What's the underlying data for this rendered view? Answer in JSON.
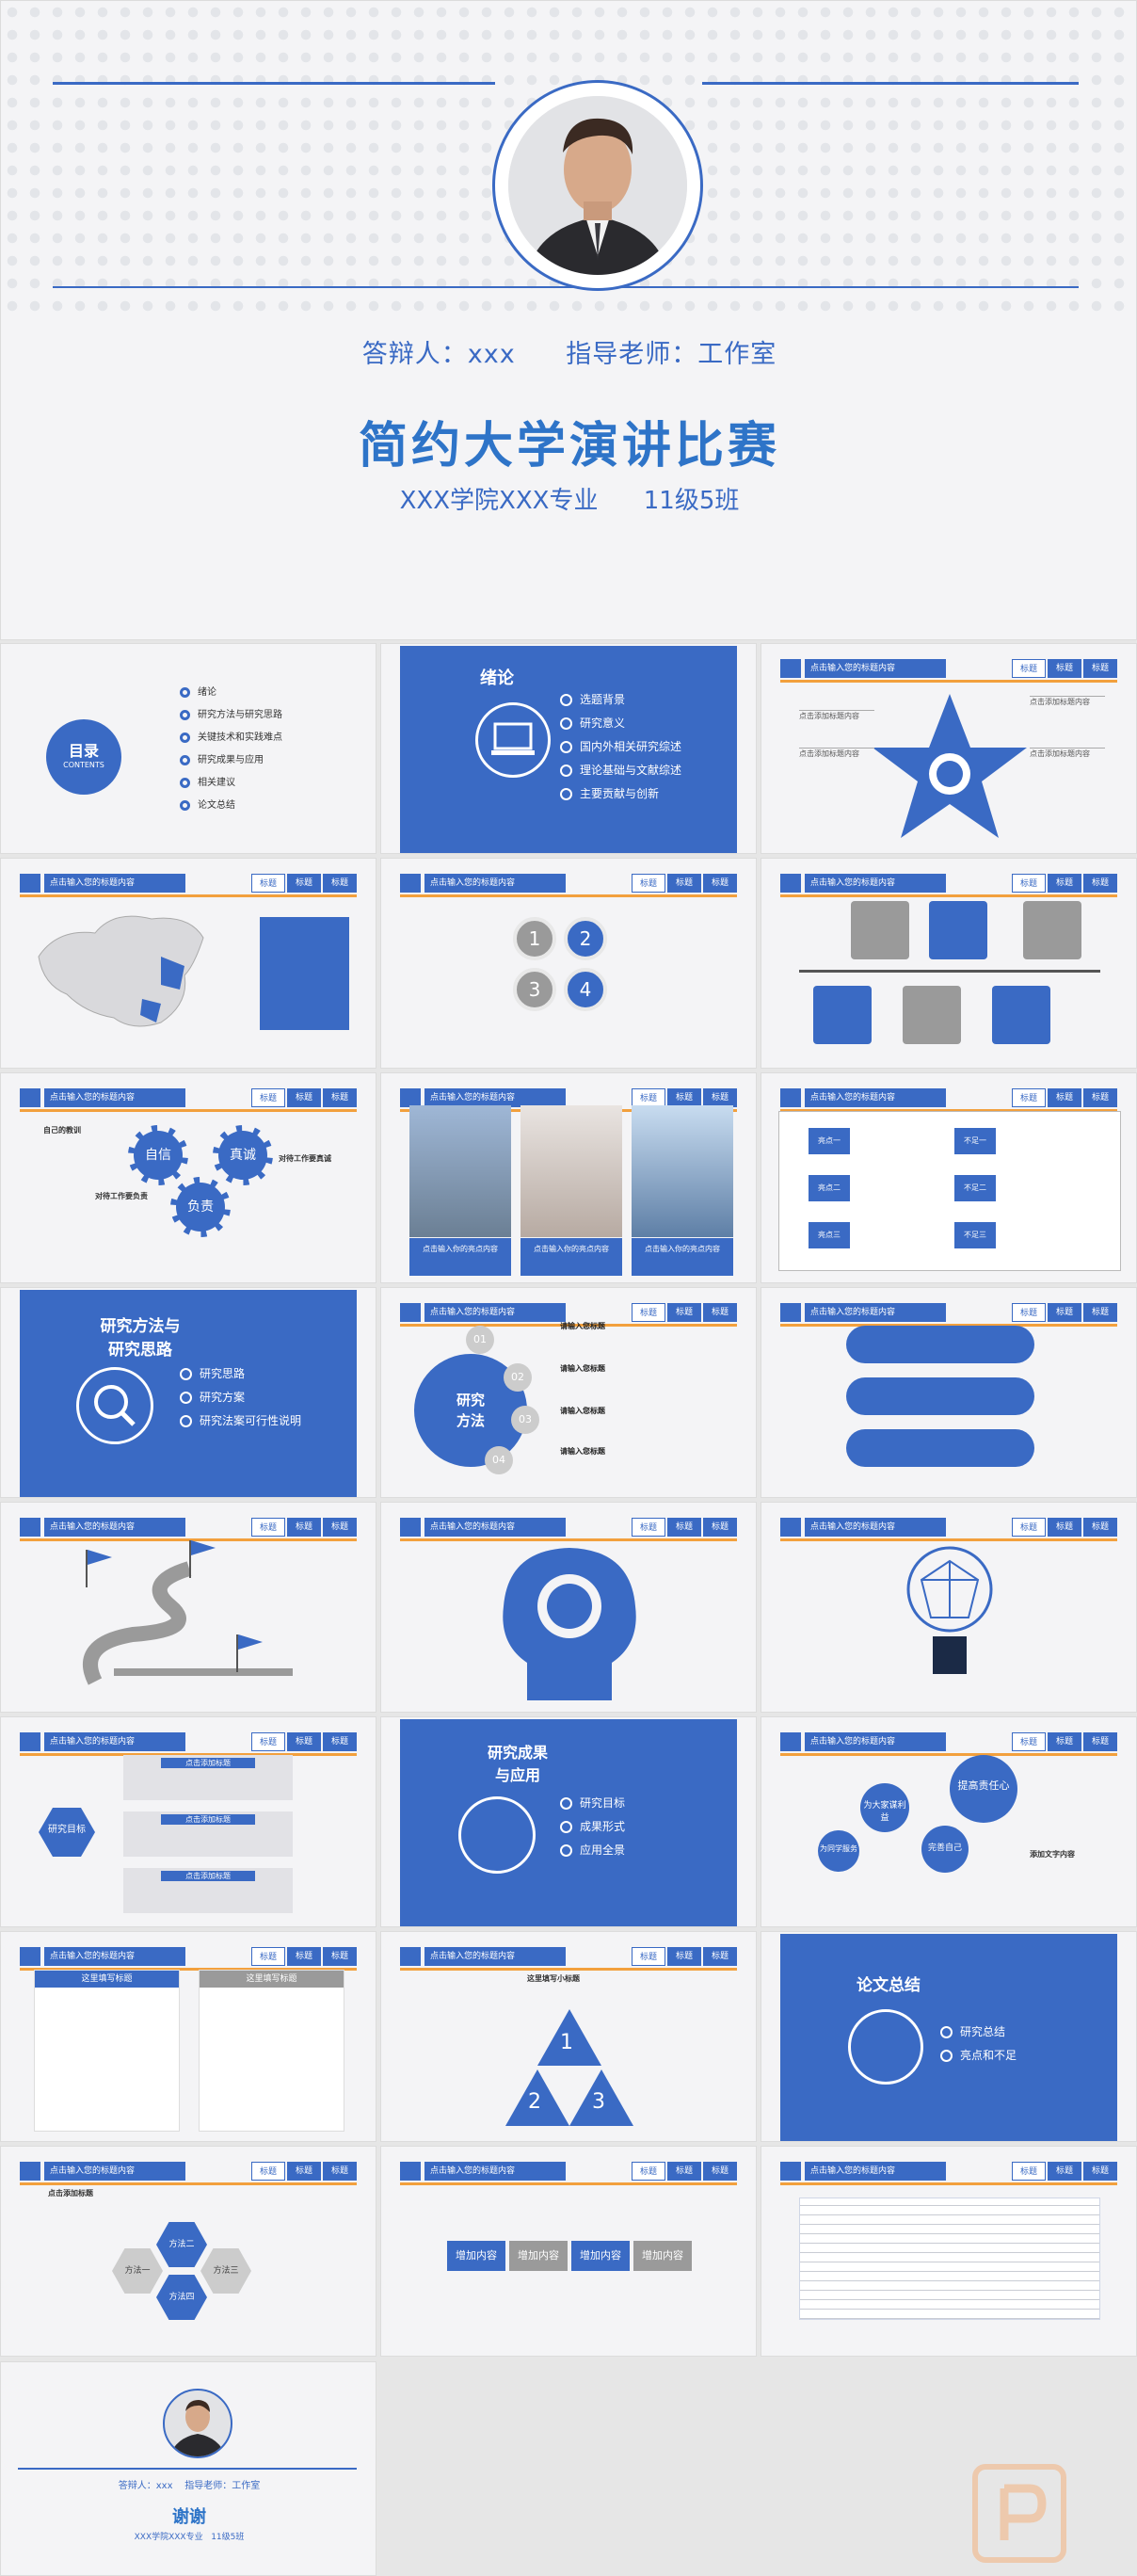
{
  "cover": {
    "defender": "答辩人：xxx",
    "advisor": "指导老师：工作室",
    "title": "简约大学演讲比赛",
    "college": "XXX学院XXX专业",
    "class": "11级5班"
  },
  "header": {
    "title_placeholder": "点击输入您的标题内容",
    "tabs": [
      "标题",
      "标题",
      "标题"
    ]
  },
  "toc": {
    "title": "目录",
    "subtitle": "CONTENTS",
    "items": [
      "绪论",
      "研究方法与研究思路",
      "关键技术和实践难点",
      "研究成果与应用",
      "相关建议",
      "论文总结"
    ]
  },
  "intro": {
    "title": "绪论",
    "items": [
      "选题背景",
      "研究意义",
      "国内外相关研究综述",
      "理论基础与文献综述",
      "主要贡献与创新"
    ]
  },
  "method_section": {
    "title_line1": "研究方法与",
    "title_line2": "研究思路",
    "items": [
      "研究思路",
      "研究方案",
      "研究法案可行性说明"
    ]
  },
  "results_section": {
    "title_line1": "研究成果",
    "title_line2": "与应用",
    "items": [
      "研究目标",
      "成果形式",
      "应用全景"
    ]
  },
  "summary_section": {
    "title": "论文总结",
    "items": [
      "研究总结",
      "亮点和不足"
    ]
  },
  "method_slide": {
    "center_line1": "研究",
    "center_line2": "方法",
    "numbers": [
      "01",
      "02",
      "03",
      "04"
    ],
    "headings": [
      "请输入您标题",
      "请输入您标题",
      "请输入您标题",
      "请输入您标题"
    ]
  },
  "numbers_slide": {
    "numbers": [
      "1",
      "2",
      "3",
      "4"
    ]
  },
  "gears_slide": {
    "labels": [
      "自信",
      "真诚",
      "负责"
    ],
    "notes": [
      "自己的教训",
      "对待工作要真诚",
      "对待工作要负责"
    ]
  },
  "photos_slide": {
    "captions": [
      "点击输入你的亮点内容",
      "点击输入你的亮点内容",
      "点击输入你的亮点内容"
    ]
  },
  "compare_slide": {
    "left": [
      "亮点一",
      "亮点二",
      "亮点三"
    ],
    "right": [
      "不足一",
      "不足二",
      "不足三"
    ]
  },
  "goal_slide": {
    "center": "研究目标",
    "items": [
      "点击添加标题",
      "点击添加标题",
      "点击添加标题"
    ]
  },
  "bubbles_slide": {
    "labels": [
      "为大家谋利益",
      "提高责任心",
      "完善自己",
      "为同学服务"
    ],
    "note": "添加文字内容"
  },
  "list_slide": {
    "left_title": "这里填写标题",
    "right_title": "这里填写标题"
  },
  "triangle_slide": {
    "numbers": [
      "1",
      "2",
      "3"
    ],
    "heading": "这里填写小标题"
  },
  "hex_slide": {
    "items": [
      "方法一",
      "方法二",
      "方法三",
      "方法四"
    ],
    "heading": "点击添加标题"
  },
  "boxes_slide": {
    "items": [
      "增加内容",
      "增加内容",
      "增加内容",
      "增加内容"
    ]
  },
  "closing": {
    "defender": "答辩人：xxx",
    "advisor": "指导老师：工作室",
    "thanks": "谢谢",
    "college": "XXX学院XXX专业",
    "class": "11级5班"
  },
  "colors": {
    "primary": "#3a6ac4",
    "accent": "#f2a03d",
    "background": "#f4f4f6"
  }
}
